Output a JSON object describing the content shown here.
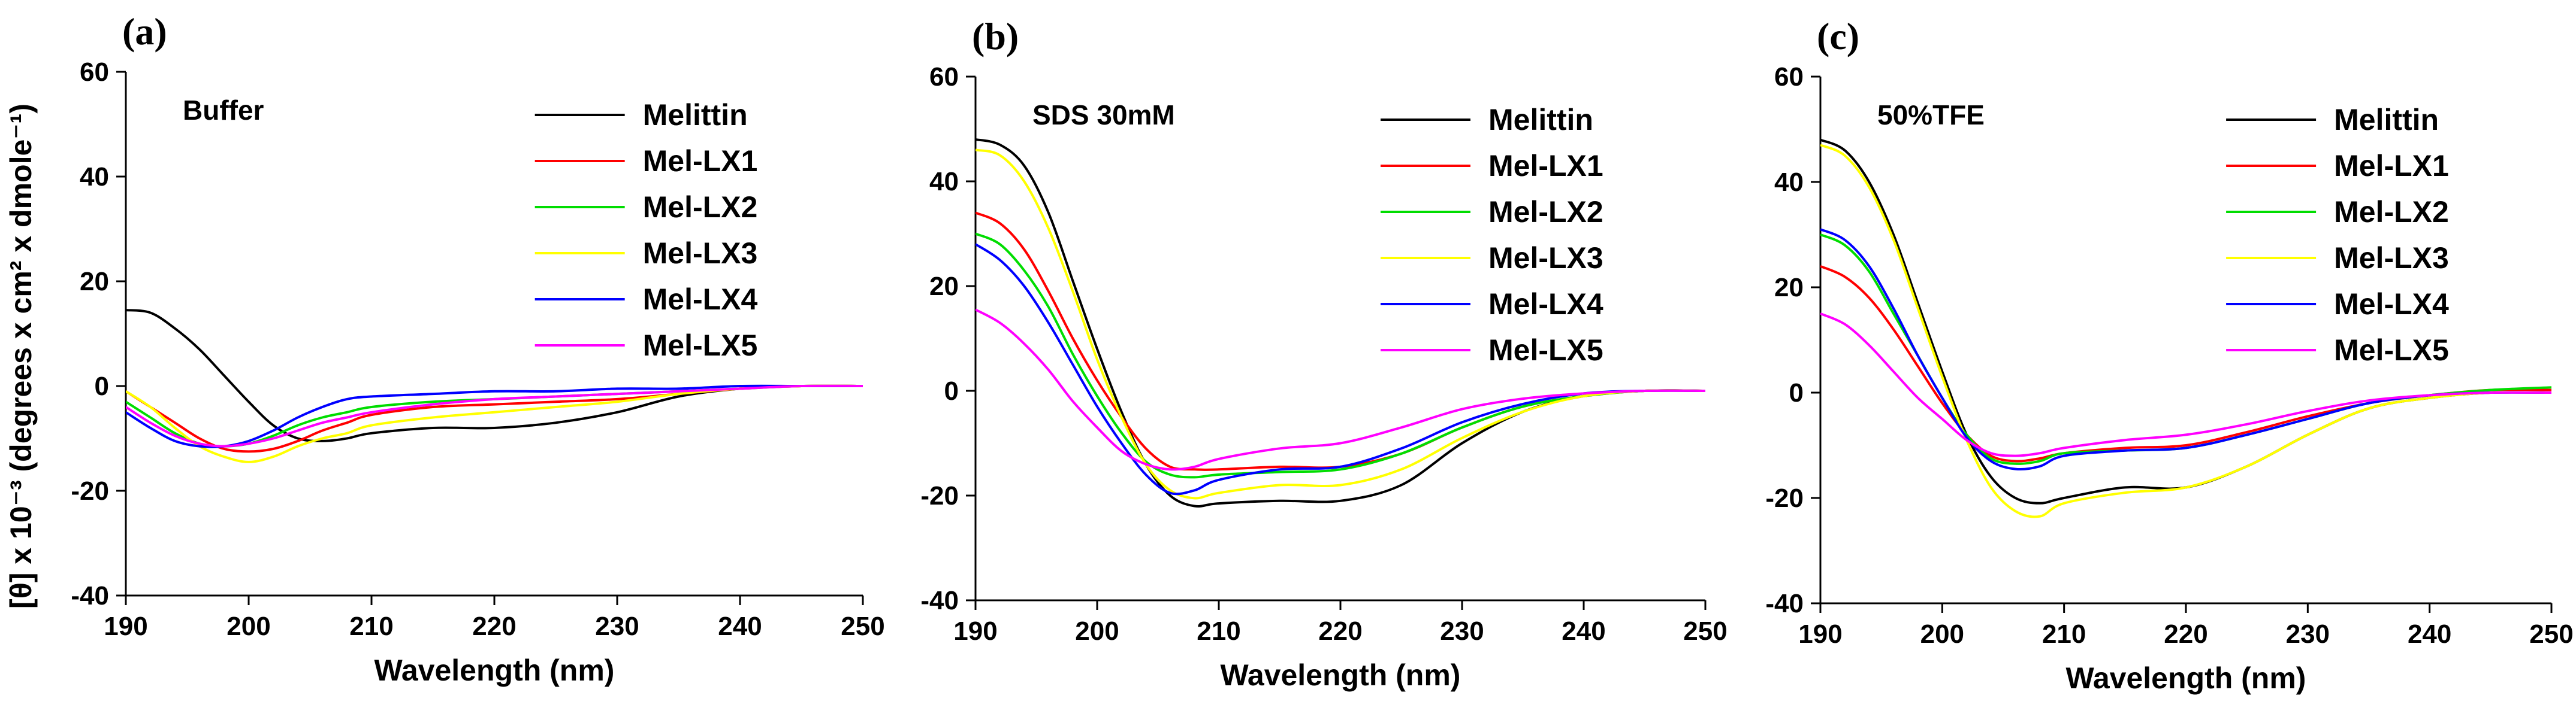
{
  "figure": {
    "y_axis_title": "[θ] x 10⁻³ (degrees x cm² x dmole⁻¹)"
  },
  "chart_data": [
    {
      "type": "line",
      "panel_label": "(a)",
      "condition_label": "Buffer",
      "xlabel": "Wavelength (nm)",
      "ylabel": "[θ] x 10⁻³ (degrees x cm² x dmole⁻¹)",
      "xlim": [
        190,
        250
      ],
      "ylim": [
        -40,
        60
      ],
      "xticks": [
        190,
        200,
        210,
        220,
        230,
        240,
        250
      ],
      "yticks": [
        -40,
        -20,
        0,
        20,
        40,
        60
      ],
      "legend_position": "top-right",
      "series": [
        {
          "name": "Melittin",
          "color": "#000000",
          "x": [
            190,
            192,
            194,
            196,
            198,
            200,
            202,
            204,
            206,
            208,
            210,
            215,
            220,
            225,
            230,
            235,
            240,
            245,
            250
          ],
          "y": [
            14.5,
            14,
            11,
            7,
            2,
            -3,
            -7.5,
            -10,
            -10.5,
            -10,
            -9,
            -8,
            -8,
            -7,
            -5,
            -2,
            -0.5,
            0,
            0
          ]
        },
        {
          "name": "Mel-LX1",
          "color": "#ff0000",
          "x": [
            190,
            192,
            194,
            196,
            198,
            200,
            202,
            204,
            206,
            208,
            210,
            215,
            220,
            225,
            230,
            235,
            240,
            245,
            250
          ],
          "y": [
            -1,
            -4,
            -7,
            -10,
            -12,
            -12.5,
            -12,
            -10.5,
            -8.5,
            -7,
            -5.5,
            -4,
            -3.5,
            -3,
            -2.5,
            -1.5,
            -0.5,
            0,
            0
          ]
        },
        {
          "name": "Mel-LX2",
          "color": "#00dd00",
          "x": [
            190,
            192,
            194,
            196,
            198,
            200,
            202,
            204,
            206,
            208,
            210,
            215,
            220,
            225,
            230,
            235,
            240,
            245,
            250
          ],
          "y": [
            -3,
            -6,
            -9,
            -11,
            -11.5,
            -11,
            -9.5,
            -7.5,
            -6,
            -5,
            -4,
            -3,
            -2.5,
            -2,
            -1.5,
            -1,
            -0.5,
            0,
            0
          ]
        },
        {
          "name": "Mel-LX3",
          "color": "#ffff00",
          "x": [
            190,
            192,
            194,
            196,
            198,
            200,
            202,
            204,
            206,
            208,
            210,
            215,
            220,
            225,
            230,
            235,
            240,
            245,
            250
          ],
          "y": [
            -1,
            -4,
            -8,
            -11.5,
            -13.5,
            -14.5,
            -13.5,
            -11.5,
            -10,
            -9,
            -7.5,
            -6,
            -5,
            -4,
            -3,
            -1.5,
            -0.5,
            0,
            0
          ]
        },
        {
          "name": "Mel-LX4",
          "color": "#0000ff",
          "x": [
            190,
            192,
            194,
            196,
            198,
            200,
            202,
            204,
            206,
            208,
            210,
            215,
            220,
            225,
            230,
            235,
            240,
            245,
            250
          ],
          "y": [
            -5,
            -8,
            -10.5,
            -11.5,
            -11.5,
            -10.5,
            -8.5,
            -6,
            -4,
            -2.5,
            -2,
            -1.5,
            -1,
            -1,
            -0.5,
            -0.5,
            0,
            0,
            0
          ]
        },
        {
          "name": "Mel-LX5",
          "color": "#ff00ff",
          "x": [
            190,
            192,
            194,
            196,
            198,
            200,
            202,
            204,
            206,
            208,
            210,
            215,
            220,
            225,
            230,
            235,
            240,
            245,
            250
          ],
          "y": [
            -4,
            -7,
            -9.5,
            -11,
            -11.5,
            -11,
            -10,
            -8.5,
            -7,
            -6,
            -5,
            -3.5,
            -2.5,
            -2,
            -1.5,
            -1,
            -0.5,
            0,
            0
          ]
        }
      ]
    },
    {
      "type": "line",
      "panel_label": "(b)",
      "condition_label": "SDS 30mM",
      "xlabel": "Wavelength (nm)",
      "ylabel": "",
      "xlim": [
        190,
        250
      ],
      "ylim": [
        -40,
        60
      ],
      "xticks": [
        190,
        200,
        210,
        220,
        230,
        240,
        250
      ],
      "yticks": [
        -40,
        -20,
        0,
        20,
        40,
        60
      ],
      "legend_position": "top-right",
      "series": [
        {
          "name": "Melittin",
          "color": "#000000",
          "x": [
            190,
            192,
            194,
            196,
            198,
            200,
            202,
            204,
            206,
            208,
            210,
            215,
            220,
            225,
            230,
            235,
            240,
            245,
            250
          ],
          "y": [
            48,
            47,
            43,
            34,
            21,
            8,
            -4,
            -14,
            -20,
            -22,
            -21.5,
            -21,
            -21,
            -18,
            -10,
            -4,
            -1,
            0,
            0
          ]
        },
        {
          "name": "Mel-LX1",
          "color": "#ff0000",
          "x": [
            190,
            192,
            194,
            196,
            198,
            200,
            202,
            204,
            206,
            208,
            210,
            215,
            220,
            225,
            230,
            235,
            240,
            245,
            250
          ],
          "y": [
            34,
            32,
            27,
            19,
            10,
            2,
            -5,
            -11,
            -14.5,
            -15,
            -15,
            -14.5,
            -14.5,
            -12,
            -7,
            -3,
            -1,
            0,
            0
          ]
        },
        {
          "name": "Mel-LX2",
          "color": "#00dd00",
          "x": [
            190,
            192,
            194,
            196,
            198,
            200,
            202,
            204,
            206,
            208,
            210,
            215,
            220,
            225,
            230,
            235,
            240,
            245,
            250
          ],
          "y": [
            30,
            28,
            23,
            16,
            7,
            -1,
            -8,
            -13.5,
            -16,
            -16.5,
            -16,
            -15.5,
            -15,
            -12,
            -7,
            -3,
            -1,
            0,
            0
          ]
        },
        {
          "name": "Mel-LX3",
          "color": "#ffff00",
          "x": [
            190,
            192,
            194,
            196,
            198,
            200,
            202,
            204,
            206,
            208,
            210,
            215,
            220,
            225,
            230,
            235,
            240,
            245,
            250
          ],
          "y": [
            46,
            45,
            40,
            31,
            19,
            6,
            -5,
            -14,
            -19,
            -20.5,
            -19.5,
            -18,
            -18,
            -15,
            -9,
            -4,
            -1,
            0,
            0
          ]
        },
        {
          "name": "Mel-LX4",
          "color": "#0000ff",
          "x": [
            190,
            192,
            194,
            196,
            198,
            200,
            202,
            204,
            206,
            208,
            210,
            215,
            220,
            225,
            230,
            235,
            240,
            245,
            250
          ],
          "y": [
            28,
            25,
            20,
            13,
            5,
            -3,
            -10,
            -16,
            -19.5,
            -19,
            -17,
            -15,
            -14.5,
            -11,
            -6,
            -2.5,
            -0.5,
            0,
            0
          ]
        },
        {
          "name": "Mel-LX5",
          "color": "#ff00ff",
          "x": [
            190,
            192,
            194,
            196,
            198,
            200,
            202,
            204,
            206,
            208,
            210,
            215,
            220,
            225,
            230,
            235,
            240,
            245,
            250
          ],
          "y": [
            15.5,
            13,
            9,
            4,
            -2,
            -7,
            -11.5,
            -14,
            -15,
            -14.5,
            -13,
            -11,
            -10,
            -7,
            -3.5,
            -1.5,
            -0.5,
            0,
            0
          ]
        }
      ]
    },
    {
      "type": "line",
      "panel_label": "(c)",
      "condition_label": "50%TFE",
      "xlabel": "Wavelength (nm)",
      "ylabel": "",
      "xlim": [
        190,
        250
      ],
      "ylim": [
        -40,
        60
      ],
      "xticks": [
        190,
        200,
        210,
        220,
        230,
        240,
        250
      ],
      "yticks": [
        -40,
        -20,
        0,
        20,
        40,
        60
      ],
      "legend_position": "top-right",
      "series": [
        {
          "name": "Melittin",
          "color": "#000000",
          "x": [
            190,
            192,
            194,
            196,
            198,
            200,
            202,
            204,
            206,
            208,
            210,
            215,
            220,
            225,
            230,
            235,
            240,
            245,
            250
          ],
          "y": [
            48,
            46,
            40,
            30,
            17,
            4,
            -8,
            -16,
            -20,
            -21,
            -20,
            -18,
            -18,
            -14,
            -8,
            -3,
            -1,
            0,
            0
          ]
        },
        {
          "name": "Mel-LX1",
          "color": "#ff0000",
          "x": [
            190,
            192,
            194,
            196,
            198,
            200,
            202,
            204,
            206,
            208,
            210,
            215,
            220,
            225,
            230,
            235,
            240,
            245,
            250
          ],
          "y": [
            24,
            22,
            18,
            12,
            5,
            -2,
            -8,
            -12,
            -13,
            -12.5,
            -11.5,
            -10.5,
            -10,
            -7.5,
            -4.5,
            -2,
            -0.5,
            0.5,
            0.5
          ]
        },
        {
          "name": "Mel-LX2",
          "color": "#00dd00",
          "x": [
            190,
            192,
            194,
            196,
            198,
            200,
            202,
            204,
            206,
            208,
            210,
            215,
            220,
            225,
            230,
            235,
            240,
            245,
            250
          ],
          "y": [
            30,
            28,
            23,
            15,
            7,
            -1,
            -8,
            -12.5,
            -13.5,
            -13,
            -11.5,
            -11,
            -10.5,
            -8,
            -5,
            -2,
            -0.5,
            0.5,
            1
          ]
        },
        {
          "name": "Mel-LX3",
          "color": "#ffff00",
          "x": [
            190,
            192,
            194,
            196,
            198,
            200,
            202,
            204,
            206,
            208,
            210,
            215,
            220,
            225,
            230,
            235,
            240,
            245,
            250
          ],
          "y": [
            47,
            45,
            39,
            29,
            16,
            3,
            -9,
            -18,
            -22.5,
            -23.5,
            -21,
            -19,
            -18,
            -14,
            -8,
            -3,
            -1,
            0,
            0
          ]
        },
        {
          "name": "Mel-LX4",
          "color": "#0000ff",
          "x": [
            190,
            192,
            194,
            196,
            198,
            200,
            202,
            204,
            206,
            208,
            210,
            215,
            220,
            225,
            230,
            235,
            240,
            245,
            250
          ],
          "y": [
            31,
            29,
            24,
            16,
            7,
            -1,
            -8.5,
            -13,
            -14.5,
            -14,
            -12,
            -11,
            -10.5,
            -8,
            -5,
            -2,
            -0.5,
            0,
            0
          ]
        },
        {
          "name": "Mel-LX5",
          "color": "#ff00ff",
          "x": [
            190,
            192,
            194,
            196,
            198,
            200,
            202,
            204,
            206,
            208,
            210,
            215,
            220,
            225,
            230,
            235,
            240,
            245,
            250
          ],
          "y": [
            15,
            13,
            9,
            4,
            -1,
            -5,
            -9,
            -11.5,
            -12,
            -11.5,
            -10.5,
            -9,
            -8,
            -6,
            -3.5,
            -1.5,
            -0.5,
            0,
            0
          ]
        }
      ]
    }
  ]
}
